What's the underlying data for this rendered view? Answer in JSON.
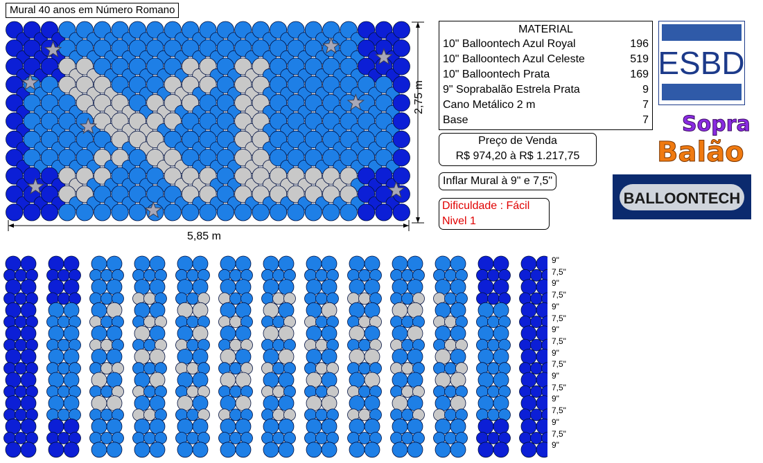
{
  "title": "Mural 40 anos em Número Romano",
  "dimensions": {
    "width_label": "5,85 m",
    "height_label": "2,75 m"
  },
  "material": {
    "heading": "MATERIAL",
    "items": [
      {
        "name": "10\" Balloontech Azul Royal",
        "qty": "196"
      },
      {
        "name": "10\" Balloontech Azul Celeste",
        "qty": "519"
      },
      {
        "name": "10\" Balloontech Prata",
        "qty": "169"
      },
      {
        "name": "9\" Soprabalão Estrela Prata",
        "qty": "9"
      },
      {
        "name": "Cano Metálico 2 m",
        "qty": "7"
      },
      {
        "name": "Base",
        "qty": "7"
      }
    ]
  },
  "price": {
    "label": "Preço de Venda",
    "value": "R$ 974,20 à R$ 1.217,75"
  },
  "inflate_note": "Inflar Mural à 9\" e 7,5\"",
  "difficulty": {
    "line1": "Dificuldade : Fácil",
    "line2": "Nivel 1"
  },
  "logos": {
    "esbd": "ESBD",
    "sopra_line1": "Sopra",
    "sopra_line2": "Balão",
    "balloontech": "BALLOONTECH"
  },
  "column_sizes": [
    "9\"",
    "7,5\"",
    "9\"",
    "7,5\"",
    "9\"",
    "7,5\"",
    "9\"",
    "7,5\"",
    "9\"",
    "7,5\"",
    "9\"",
    "7,5\"",
    "9\"",
    "7,5\"",
    "9\"",
    "7,5\"",
    "9\""
  ],
  "colors": {
    "royal": "#0c1fd6",
    "celeste": "#1e7fe6",
    "prata": "#c8c8c8",
    "star": "#a8a8b8",
    "difficulty": "#e00000"
  }
}
